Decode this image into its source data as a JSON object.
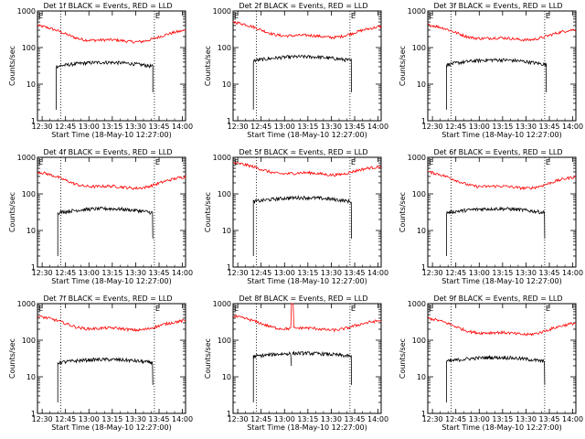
{
  "chart_data": {
    "type": "line",
    "yscale": "log",
    "ylim": [
      1,
      1000
    ],
    "ytick_labels": [
      "1",
      "10",
      "100",
      "1000"
    ],
    "xtick_labels": [
      "12:30",
      "12:45",
      "13:00",
      "13:15",
      "13:30",
      "13:45",
      "14:00"
    ],
    "xlim_minutes": [
      0,
      95
    ],
    "xlabel": "Start Time (18-May-10 12:27:00)",
    "ylabel": "Counts/sec",
    "dotted_lines_minutes": [
      15,
      75
    ],
    "edge_label": "E",
    "series_colors": {
      "events": "#000000",
      "lld": "#ff0000"
    },
    "panels": [
      {
        "title": "Det 1f BLACK = Events, RED = LLD",
        "events": {
          "start": 12,
          "end": 74,
          "level": 35,
          "shape": 0.25
        },
        "lld": {
          "min": 150,
          "max": 400,
          "shape": "u",
          "spike": null
        }
      },
      {
        "title": "Det 2f BLACK = Events, RED = LLD",
        "events": {
          "start": 13,
          "end": 76,
          "level": 50,
          "shape": 0.25
        },
        "lld": {
          "min": 200,
          "max": 500,
          "shape": "u",
          "spike": null
        }
      },
      {
        "title": "Det 3f BLACK = Events, RED = LLD",
        "events": {
          "start": 12,
          "end": 76,
          "level": 40,
          "shape": 0.3
        },
        "lld": {
          "min": 170,
          "max": 420,
          "shape": "u",
          "spike": null
        }
      },
      {
        "title": "Det 4f BLACK = Events, RED = LLD",
        "events": {
          "start": 13,
          "end": 74,
          "level": 35,
          "shape": 0.25
        },
        "lld": {
          "min": 150,
          "max": 400,
          "shape": "u",
          "spike": null
        }
      },
      {
        "title": "Det 5f BLACK = Events, RED = LLD",
        "events": {
          "start": 13,
          "end": 76,
          "level": 70,
          "shape": 0.25
        },
        "lld": {
          "min": 350,
          "max": 700,
          "shape": "u",
          "spike": null
        }
      },
      {
        "title": "Det 6f BLACK = Events, RED = LLD",
        "events": {
          "start": 12,
          "end": 75,
          "level": 35,
          "shape": 0.25
        },
        "lld": {
          "min": 150,
          "max": 400,
          "shape": "u",
          "spike": null
        }
      },
      {
        "title": "Det 7f BLACK = Events, RED = LLD",
        "events": {
          "start": 13,
          "end": 74,
          "level": 27,
          "shape": 0.2
        },
        "lld": {
          "min": 200,
          "max": 450,
          "shape": "u",
          "spike": null
        }
      },
      {
        "title": "Det 8f BLACK = Events, RED = LLD",
        "events": {
          "start": 13,
          "end": 76,
          "level": 40,
          "shape": 0.2,
          "gap": [
            37,
            38
          ]
        },
        "lld": {
          "min": 200,
          "max": 450,
          "shape": "u",
          "spike": [
            37.5,
            38.5
          ]
        }
      },
      {
        "title": "Det 9f BLACK = Events, RED = LLD",
        "events": {
          "start": 12,
          "end": 75,
          "level": 30,
          "shape": 0.25
        },
        "lld": {
          "min": 150,
          "max": 400,
          "shape": "u",
          "spike": null
        }
      }
    ]
  }
}
